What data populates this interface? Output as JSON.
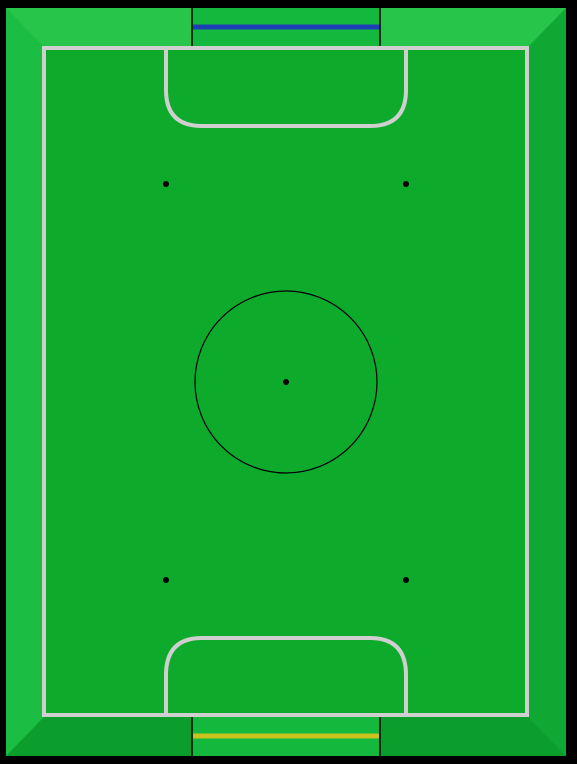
{
  "colors": {
    "background": "#000000",
    "field_outer": "#14B83C",
    "field_inner": "#0DAA2C",
    "field_bevel_light": "#2CCB4E",
    "field_bevel_dark": "#0A9226",
    "line": "#CFCFCF",
    "marking": "#000000",
    "top_goal_line": "#1C3FB5",
    "bottom_goal_line": "#C9C21F"
  },
  "icons": {
    "center_spot": "dot",
    "penalty_spot": "dot"
  }
}
